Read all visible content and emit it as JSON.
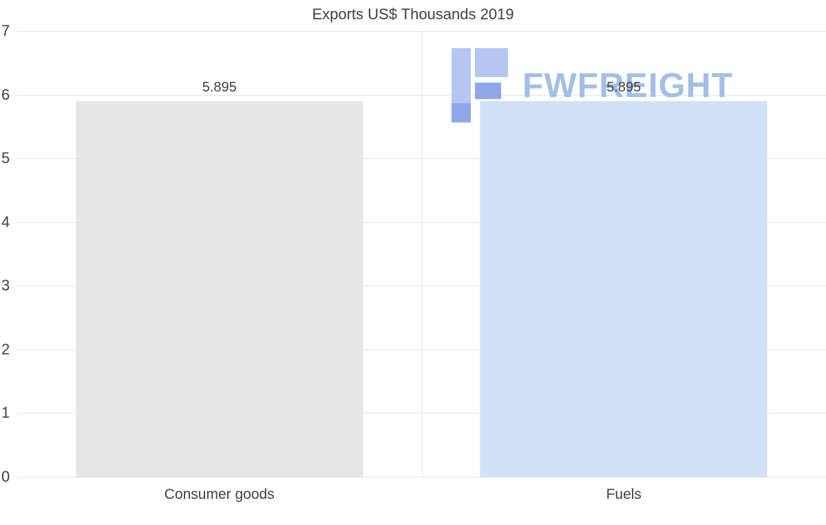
{
  "chart_data": {
    "type": "bar",
    "title": "Exports US$ Thousands 2019",
    "xlabel": "",
    "ylabel": "",
    "categories": [
      "Consumer goods",
      "Fuels"
    ],
    "values": [
      5.895,
      5.895
    ],
    "value_labels": [
      "5.895",
      "5.895"
    ],
    "bar_colors": [
      "#e6e6e6",
      "#cfe2f7"
    ],
    "ylim": [
      0,
      7
    ],
    "yticks": [
      0,
      1,
      2,
      3,
      4,
      5,
      6,
      7
    ],
    "grid": true,
    "legend": false
  },
  "watermark": {
    "text": "FWFREIGHT",
    "color": "#a3bfe6",
    "icon_dark": "#8ea8ea",
    "icon_light": "#b4c6f2"
  },
  "colors": {
    "text": "#404040",
    "gridline": "#e3e3e3",
    "background": "#ffffff"
  }
}
